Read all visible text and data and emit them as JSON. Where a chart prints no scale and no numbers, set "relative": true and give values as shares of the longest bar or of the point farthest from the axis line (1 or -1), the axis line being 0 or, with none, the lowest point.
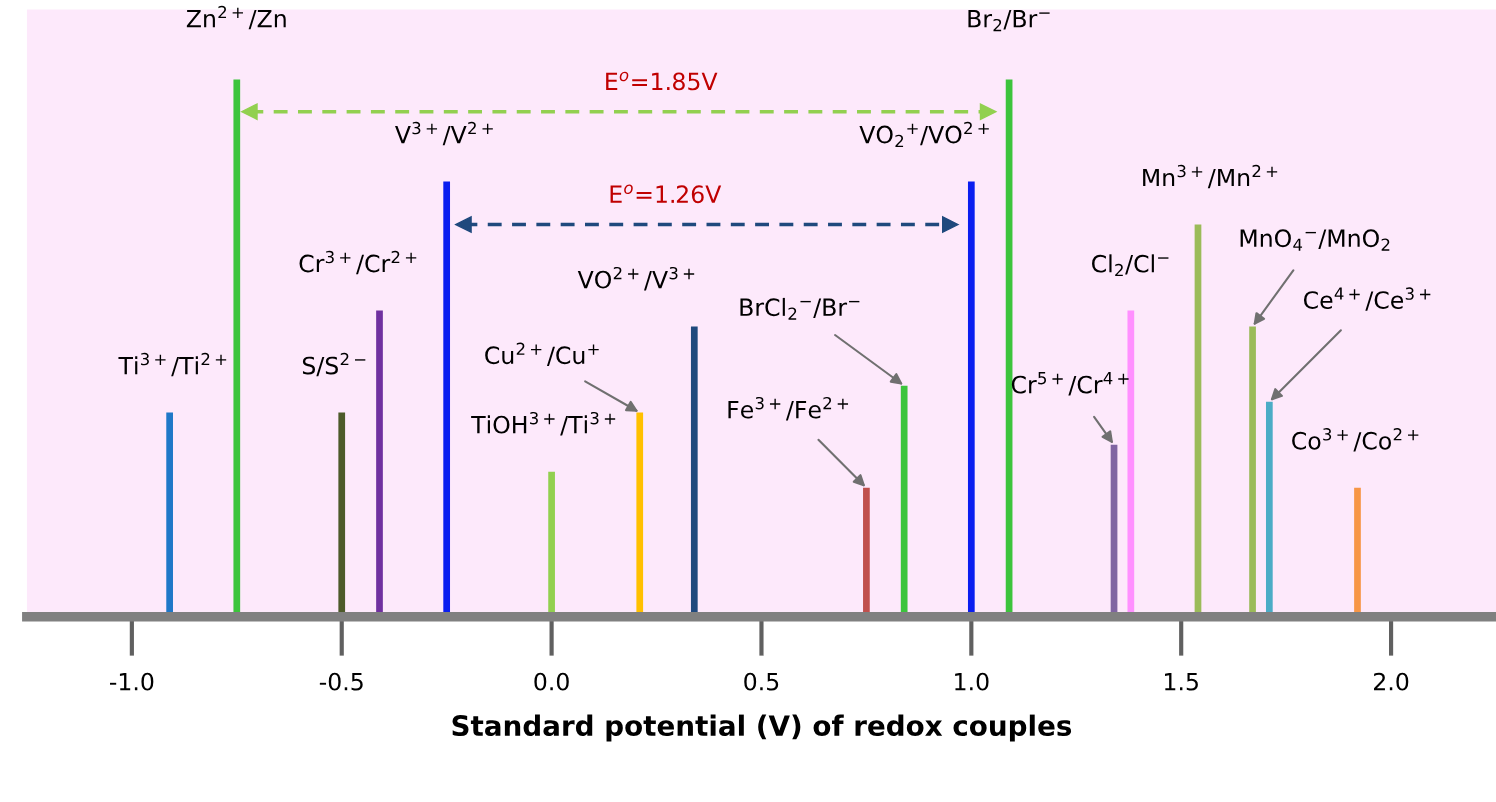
{
  "chart_data": {
    "type": "bar",
    "relative": true,
    "xlabel": "Standard potential (V) of redox couples",
    "xlim": [
      -1.25,
      2.25
    ],
    "xticks": [
      {
        "value": -1,
        "label": "-1.0"
      },
      {
        "value": -0.5,
        "label": "-0.5"
      },
      {
        "value": 0,
        "label": "0.0"
      },
      {
        "value": 0.5,
        "label": "0.5"
      },
      {
        "value": 1,
        "label": "1.0"
      },
      {
        "value": 1.5,
        "label": "1.5"
      },
      {
        "value": 2,
        "label": "2.0"
      }
    ],
    "tick_labels": "x",
    "grid": false,
    "legend": false,
    "series": [
      {
        "x": [
          -0.91,
          -0.75,
          -0.5,
          -0.41,
          -0.25,
          0.0,
          0.21,
          0.34,
          0.75,
          0.84,
          1.0,
          1.09,
          1.34,
          1.38,
          1.54,
          1.67,
          1.71,
          1.92
        ],
        "values": [
          0.38,
          1.0,
          0.38,
          0.57,
          0.81,
          0.27,
          0.38,
          0.54,
          0.24,
          0.43,
          0.81,
          1.0,
          0.32,
          0.57,
          0.73,
          0.54,
          0.4,
          0.24
        ],
        "colors": [
          "#1f78c8",
          "#3cc43c",
          "#4d5a2a",
          "#7030a0",
          "#0a1ef0",
          "#92d050",
          "#ffc000",
          "#1f497d",
          "#c0504d",
          "#3cc43c",
          "#0a1ef0",
          "#3cc43c",
          "#8064a2",
          "#ff90ff",
          "#9bbb59",
          "#9bbb59",
          "#4bacc6",
          "#f79646"
        ]
      },
      {
        "type": "line",
        "line_style": "dashed",
        "marker": "triangle",
        "color": "#92d050",
        "x": [
          -0.72,
          1.04
        ],
        "values": [
          0.94,
          0.94
        ]
      },
      {
        "type": "line",
        "line_style": "dashed",
        "marker": "triangle",
        "color": "#1f497d",
        "x": [
          -0.21,
          0.95
        ],
        "values": [
          0.73,
          0.73
        ]
      }
    ],
    "annotations": [
      {
        "text": "Ti$^{3+}$/Ti$^{2+}$",
        "x": -0.91,
        "y": 0.38
      },
      {
        "text": "Zn$^{2+}$/Zn",
        "x": -0.75,
        "y": 1.0
      },
      {
        "text": "S/S$^{2−}$",
        "x": -0.5,
        "y": 0.38
      },
      {
        "text": "Cr$^{3+}$/Cr$^{2+}$",
        "x": -0.41,
        "y": 0.57
      },
      {
        "text": "V$^{3+}$/V$^{2+}$",
        "x": -0.25,
        "y": 0.81
      },
      {
        "text": "TiOH$^{3+}$/Ti$^{3+}$",
        "x": 0.0,
        "y": 0.27
      },
      {
        "text": "Cu$^{2+}$/Cu$^{+}$",
        "x": 0.21,
        "y": 0.38
      },
      {
        "text": "VO$^{2+}$/V$^{3+}$",
        "x": 0.34,
        "y": 0.54
      },
      {
        "text": "Fe$^{3+}$/Fe$^{2+}$",
        "x": 0.75,
        "y": 0.24
      },
      {
        "text": "BrCl$_{2}$$^{−}$/Br$^{−}$",
        "x": 0.84,
        "y": 0.43
      },
      {
        "text": "VO$_{2}$$^{+}$/VO$^{2+}$",
        "x": 1.0,
        "y": 0.81
      },
      {
        "text": "Br$_{2}$/Br$^{−}$",
        "x": 1.09,
        "y": 1.0
      },
      {
        "text": "Cr$^{5+}$/Cr$^{4+}$",
        "x": 1.34,
        "y": 0.32
      },
      {
        "text": "Cl$_{2}$/Cl$^{−}$",
        "x": 1.38,
        "y": 0.57
      },
      {
        "text": "Mn$^{3+}$/Mn$^{2+}$",
        "x": 1.54,
        "y": 0.73
      },
      {
        "text": "MnO$_{4}$$^{−}$/MnO$_{2}$",
        "x": 1.67,
        "y": 0.54
      },
      {
        "text": "Ce$^{4+}$/Ce$^{3+}$",
        "x": 1.71,
        "y": 0.4
      },
      {
        "text": "Co$^{3+}$/Co$^{2+}$",
        "x": 1.92,
        "y": 0.24
      },
      {
        "text": "E$^{o}$=1.85V",
        "x": 0.26,
        "y": 0.94
      },
      {
        "text": "E$^{o}$=1.26V",
        "x": 0.27,
        "y": 0.73
      }
    ]
  }
}
